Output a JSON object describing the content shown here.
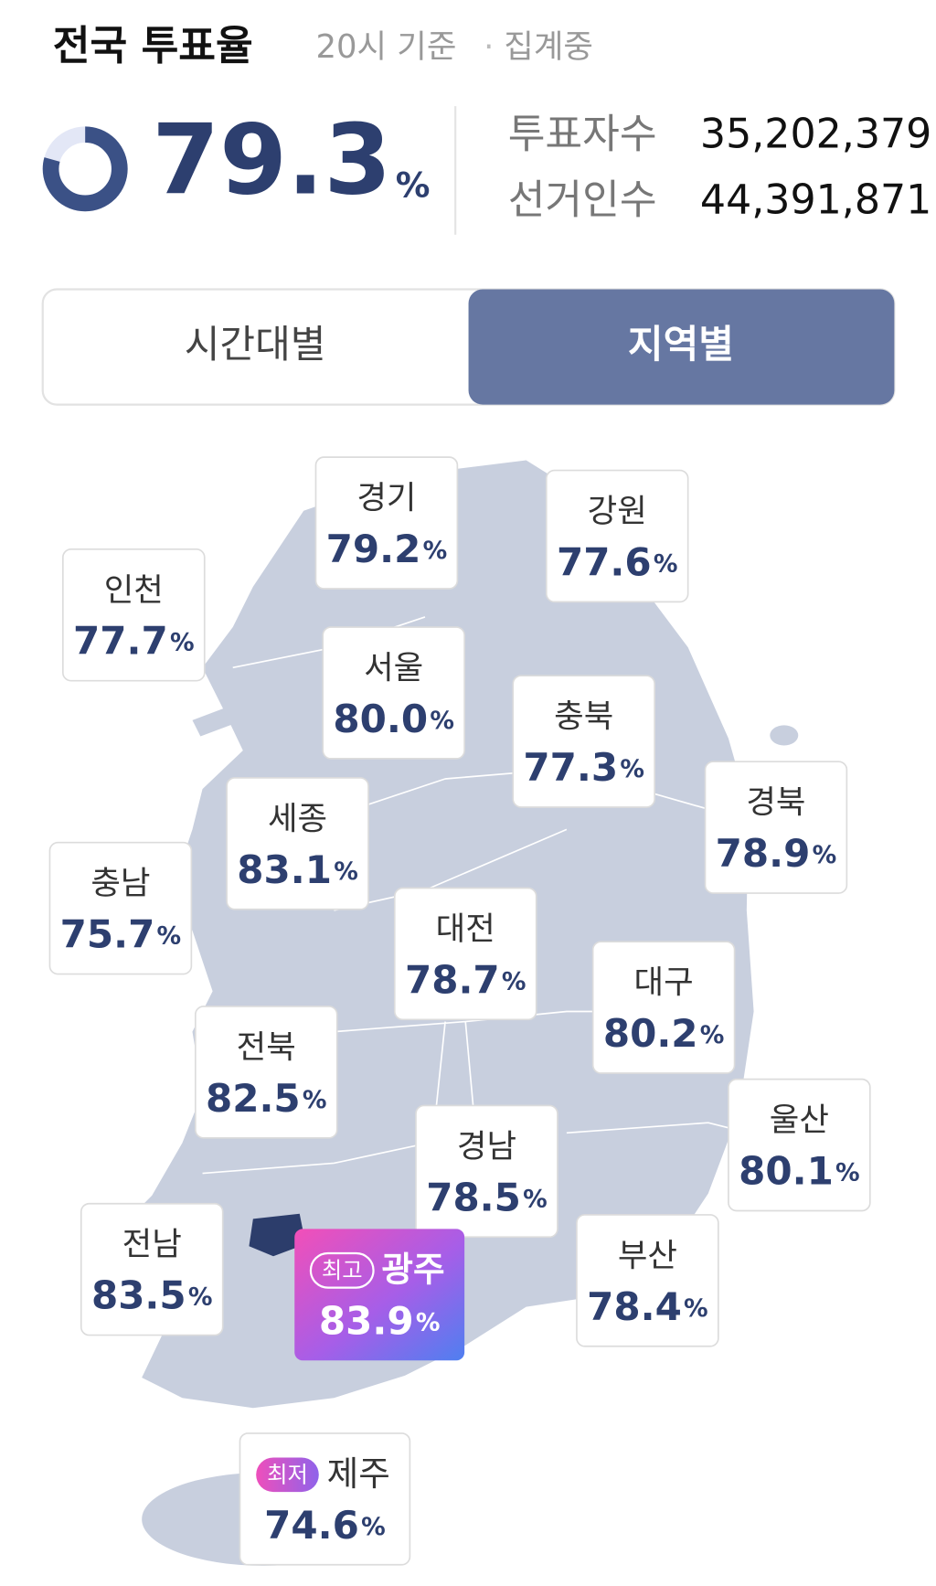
{
  "header": {
    "title": "전국 투표율",
    "basis": "20시 기준",
    "status": "집계중"
  },
  "turnout": {
    "value": "79.3",
    "unit": "%"
  },
  "stats": [
    {
      "label": "투표자수",
      "value": "35,202,379"
    },
    {
      "label": "선거인수",
      "value": "44,391,871"
    }
  ],
  "tabs": [
    {
      "label": "시간대별",
      "active": false
    },
    {
      "label": "지역별",
      "active": true
    }
  ],
  "regions": [
    {
      "name": "경기",
      "value": "79.2",
      "unit": "%"
    },
    {
      "name": "강원",
      "value": "77.6",
      "unit": "%"
    },
    {
      "name": "인천",
      "value": "77.7",
      "unit": "%"
    },
    {
      "name": "서울",
      "value": "80.0",
      "unit": "%"
    },
    {
      "name": "충북",
      "value": "77.3",
      "unit": "%"
    },
    {
      "name": "경북",
      "value": "78.9",
      "unit": "%"
    },
    {
      "name": "세종",
      "value": "83.1",
      "unit": "%"
    },
    {
      "name": "충남",
      "value": "75.7",
      "unit": "%"
    },
    {
      "name": "대전",
      "value": "78.7",
      "unit": "%"
    },
    {
      "name": "대구",
      "value": "80.2",
      "unit": "%"
    },
    {
      "name": "전북",
      "value": "82.5",
      "unit": "%"
    },
    {
      "name": "울산",
      "value": "80.1",
      "unit": "%"
    },
    {
      "name": "경남",
      "value": "78.5",
      "unit": "%"
    },
    {
      "name": "전남",
      "value": "83.5",
      "unit": "%"
    },
    {
      "name": "광주",
      "value": "83.9",
      "unit": "%",
      "badge": "최고",
      "highlight": true
    },
    {
      "name": "부산",
      "value": "78.4",
      "unit": "%"
    },
    {
      "name": "제주",
      "value": "74.6",
      "unit": "%",
      "badge": "최저"
    }
  ]
}
